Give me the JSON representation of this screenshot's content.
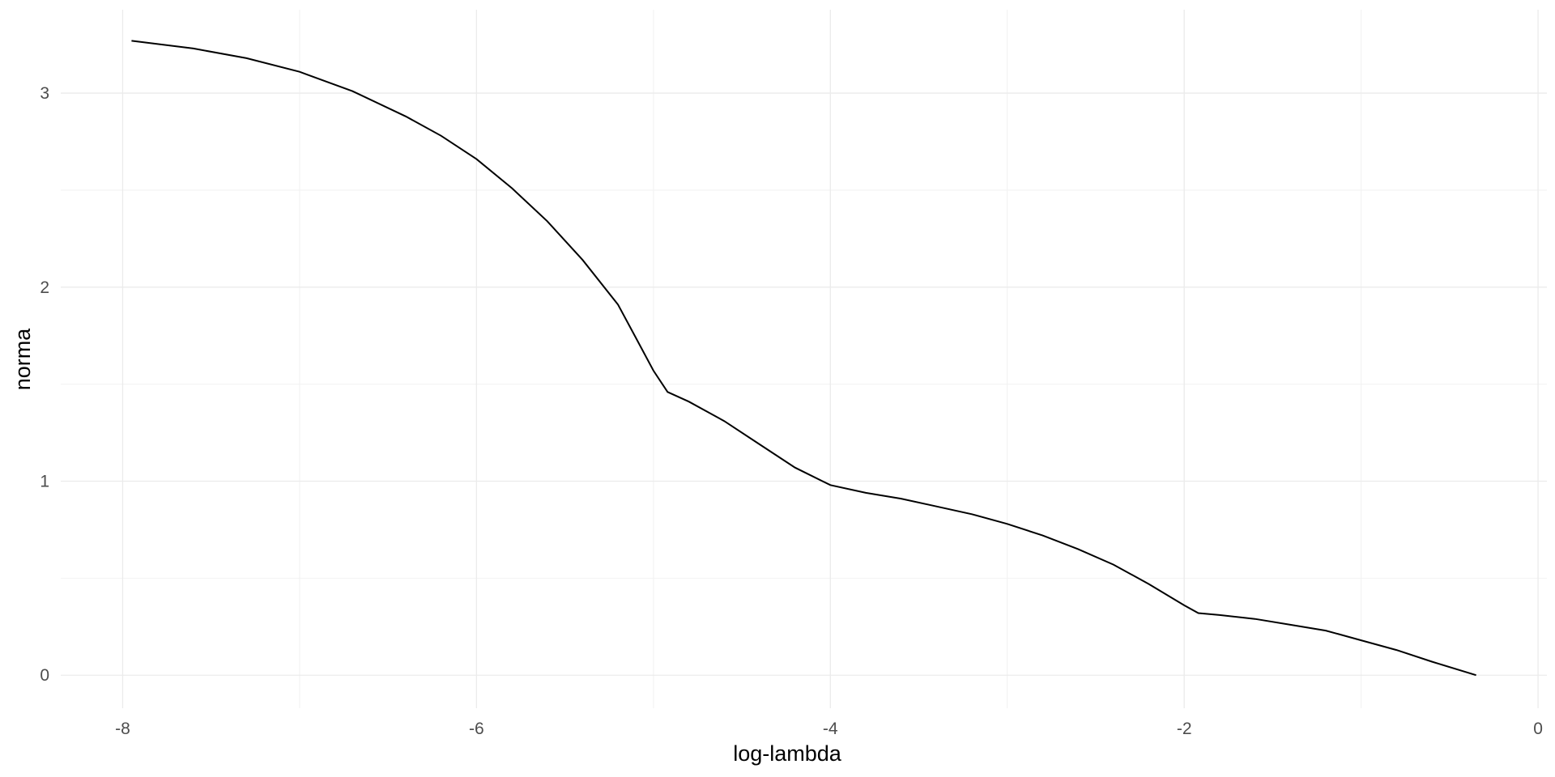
{
  "chart_data": {
    "type": "line",
    "title": "",
    "xlabel": "log-lambda",
    "ylabel": "norma",
    "xlim": [
      -8.35,
      0.05
    ],
    "ylim": [
      -0.17,
      3.43
    ],
    "x_ticks": [
      -8,
      -6,
      -4,
      -2,
      0
    ],
    "x_tick_labels": [
      "-8",
      "-6",
      "-4",
      "-2",
      "0"
    ],
    "x_minor_ticks": [
      -7,
      -5,
      -3,
      -1
    ],
    "y_ticks": [
      0,
      1,
      2,
      3
    ],
    "y_tick_labels": [
      "0",
      "1",
      "2",
      "3"
    ],
    "y_minor_ticks": [
      0.5,
      1.5,
      2.5
    ],
    "grid": true,
    "legend": "none",
    "colors": {
      "line": "#000000",
      "grid_major": "#ebebeb",
      "grid_minor": "#f2f2f2",
      "tick_text": "#4d4d4d"
    },
    "series": [
      {
        "x": [
          -7.95,
          -7.6,
          -7.3,
          -7.0,
          -6.7,
          -6.4,
          -6.2,
          -6.0,
          -5.8,
          -5.6,
          -5.4,
          -5.2,
          -5.1,
          -5.0,
          -4.92,
          -4.8,
          -4.6,
          -4.4,
          -4.2,
          -4.0,
          -3.8,
          -3.6,
          -3.4,
          -3.2,
          -3.0,
          -2.8,
          -2.6,
          -2.4,
          -2.2,
          -2.0,
          -1.92,
          -1.8,
          -1.6,
          -1.4,
          -1.2,
          -1.0,
          -0.8,
          -0.6,
          -0.35
        ],
        "y": [
          3.27,
          3.23,
          3.18,
          3.11,
          3.01,
          2.88,
          2.78,
          2.66,
          2.51,
          2.34,
          2.14,
          1.91,
          1.74,
          1.57,
          1.46,
          1.41,
          1.31,
          1.19,
          1.07,
          0.98,
          0.94,
          0.91,
          0.87,
          0.83,
          0.78,
          0.72,
          0.65,
          0.57,
          0.47,
          0.36,
          0.32,
          0.31,
          0.29,
          0.26,
          0.23,
          0.18,
          0.13,
          0.07,
          0.0
        ]
      }
    ]
  }
}
